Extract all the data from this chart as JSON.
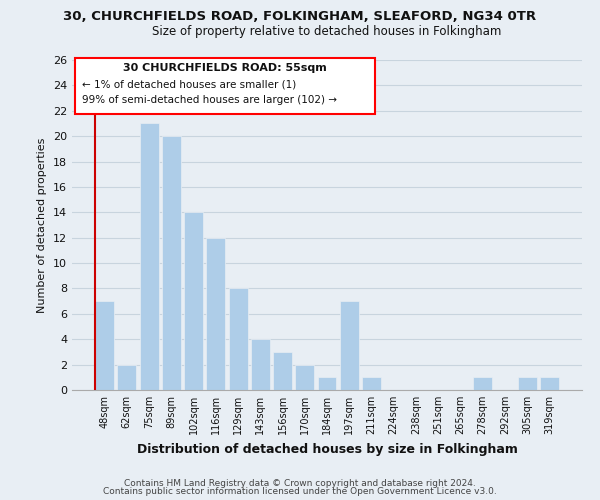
{
  "title": "30, CHURCHFIELDS ROAD, FOLKINGHAM, SLEAFORD, NG34 0TR",
  "subtitle": "Size of property relative to detached houses in Folkingham",
  "xlabel": "Distribution of detached houses by size in Folkingham",
  "ylabel": "Number of detached properties",
  "bar_color": "#aecde8",
  "highlight_color": "#cc0000",
  "categories": [
    "48sqm",
    "62sqm",
    "75sqm",
    "89sqm",
    "102sqm",
    "116sqm",
    "129sqm",
    "143sqm",
    "156sqm",
    "170sqm",
    "184sqm",
    "197sqm",
    "211sqm",
    "224sqm",
    "238sqm",
    "251sqm",
    "265sqm",
    "278sqm",
    "292sqm",
    "305sqm",
    "319sqm"
  ],
  "values": [
    7,
    2,
    21,
    20,
    14,
    12,
    8,
    4,
    3,
    2,
    1,
    7,
    1,
    0,
    0,
    0,
    0,
    1,
    0,
    1,
    1
  ],
  "highlight_bar_index": 0,
  "ylim": [
    0,
    26
  ],
  "yticks": [
    0,
    2,
    4,
    6,
    8,
    10,
    12,
    14,
    16,
    18,
    20,
    22,
    24,
    26
  ],
  "annotation_title": "30 CHURCHFIELDS ROAD: 55sqm",
  "annotation_line1": "← 1% of detached houses are smaller (1)",
  "annotation_line2": "99% of semi-detached houses are larger (102) →",
  "footer_line1": "Contains HM Land Registry data © Crown copyright and database right 2024.",
  "footer_line2": "Contains public sector information licensed under the Open Government Licence v3.0.",
  "background_color": "#e8eef4",
  "plot_bg_color": "#e8eef4",
  "grid_color": "#c8d4de"
}
